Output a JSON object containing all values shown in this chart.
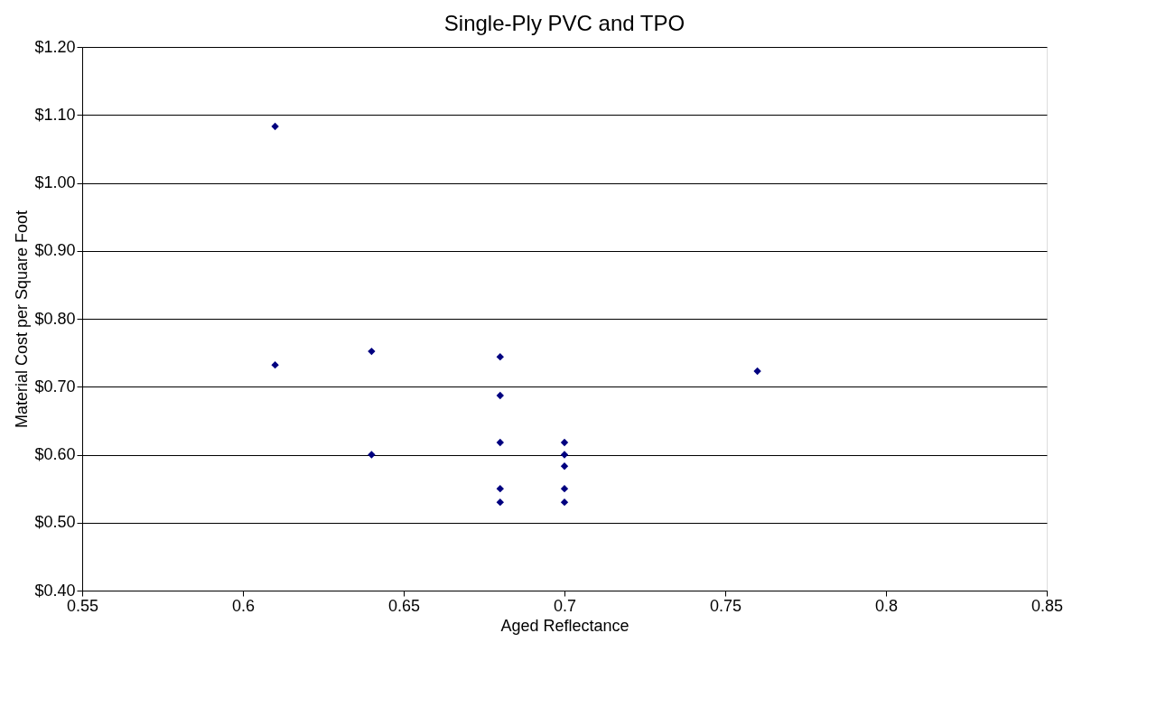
{
  "chart_data": {
    "type": "scatter",
    "title": "Single-Ply PVC and TPO",
    "xlabel": "Aged Reflectance",
    "ylabel": "Material Cost per Square Foot",
    "x": [
      0.61,
      0.61,
      0.64,
      0.64,
      0.68,
      0.68,
      0.68,
      0.68,
      0.68,
      0.7,
      0.7,
      0.7,
      0.7,
      0.7,
      0.76
    ],
    "series": [
      {
        "color": "#000080",
        "values": [
          1.083,
          0.732,
          0.752,
          0.6,
          0.744,
          0.687,
          0.618,
          0.55,
          0.53,
          0.618,
          0.6,
          0.583,
          0.55,
          0.53,
          0.723
        ]
      }
    ],
    "xlim": [
      0.55,
      0.85
    ],
    "xticks": [
      0.55,
      0.6,
      0.65,
      0.7,
      0.75,
      0.8,
      0.85
    ],
    "ylim": [
      0.4,
      1.2
    ],
    "yticks": [
      {
        "value": 0.4,
        "label": "$0.40"
      },
      {
        "value": 0.5,
        "label": "$0.50"
      },
      {
        "value": 0.6,
        "label": "$0.60"
      },
      {
        "value": 0.7,
        "label": "$0.70"
      },
      {
        "value": 0.8,
        "label": "$0.80"
      },
      {
        "value": 0.9,
        "label": "$0.90"
      },
      {
        "value": 1.0,
        "label": "$1.00"
      },
      {
        "value": 1.1,
        "label": "$1.10"
      },
      {
        "value": 1.2,
        "label": "$1.20"
      }
    ],
    "grid": "y",
    "marker": "diamond"
  }
}
